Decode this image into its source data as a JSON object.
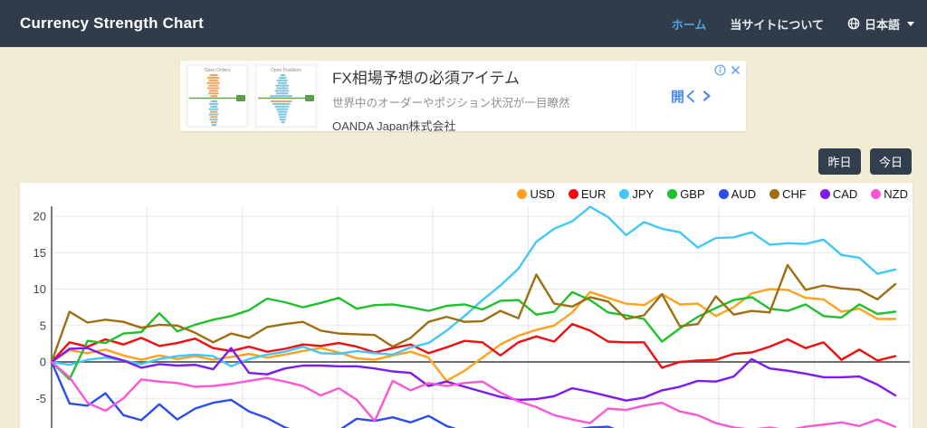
{
  "page": {
    "background": "#f3ecd5",
    "card_background": "#ffffff"
  },
  "header": {
    "title": "Currency Strength Chart",
    "background": "#303c4a",
    "active_link_color": "#4aa5e2",
    "nav": [
      {
        "label": "ホーム",
        "active": true
      },
      {
        "label": "当サイトについて",
        "active": false
      },
      {
        "label": "日本語",
        "active": false
      }
    ]
  },
  "ad": {
    "headline": "FX相場予想の必須アイテム",
    "description": "世界中のオーダーやポジション状況が一目瞭然",
    "advertiser": "OANDA Japan株式会社",
    "cta_label": "開く",
    "cta_color": "#4a8df0",
    "thumb_panels": [
      {
        "title": "Open Orders",
        "above": [
          [
            0.35,
            "o"
          ],
          [
            0.5,
            "o"
          ],
          [
            0.42,
            "o"
          ],
          [
            0.55,
            "o"
          ],
          [
            0.4,
            "o"
          ],
          [
            0.52,
            "o"
          ],
          [
            0.38,
            "o"
          ],
          [
            0.45,
            "o"
          ],
          [
            0.3,
            "o"
          ]
        ],
        "below": [
          [
            0.28,
            "b"
          ],
          [
            0.38,
            "b"
          ],
          [
            0.3,
            "b"
          ],
          [
            0.42,
            "b"
          ],
          [
            0.32,
            "o"
          ],
          [
            0.4,
            "b"
          ],
          [
            0.3,
            "o"
          ],
          [
            0.36,
            "b"
          ],
          [
            0.26,
            "o"
          ],
          [
            0.2,
            "b"
          ]
        ]
      },
      {
        "title": "Open Positions",
        "above": [
          [
            0.2,
            "b"
          ],
          [
            0.32,
            "b"
          ],
          [
            0.45,
            "b"
          ],
          [
            0.38,
            "b"
          ],
          [
            0.55,
            "b"
          ],
          [
            0.48,
            "b"
          ],
          [
            0.6,
            "b"
          ],
          [
            0.52,
            "b"
          ],
          [
            0.95,
            "b"
          ]
        ],
        "below": [
          [
            0.9,
            "o"
          ],
          [
            0.75,
            "b"
          ],
          [
            0.6,
            "b"
          ],
          [
            0.5,
            "b"
          ],
          [
            0.42,
            "b"
          ],
          [
            0.36,
            "b"
          ],
          [
            0.3,
            "b"
          ],
          [
            0.26,
            "b"
          ],
          [
            0.15,
            "b"
          ]
        ]
      }
    ]
  },
  "controls": {
    "yesterday_label": "昨日",
    "today_label": "今日"
  },
  "chart_data": {
    "type": "line",
    "title": "",
    "x_labels_visible": false,
    "x_point_count": 48,
    "yticks": [
      20,
      15,
      10,
      5,
      0,
      -5
    ],
    "visible_ylim": [
      -9,
      22
    ],
    "grid": true,
    "legend_position": "top-right",
    "grid_color": "#e7e7e7",
    "zero_line_color": "#565656",
    "axis_color": "#7a7a7a",
    "tick_label_color": "#444444",
    "series": [
      {
        "name": "USD",
        "color": "#ffa11d",
        "values": [
          0,
          1.6,
          1.2,
          1.7,
          0.9,
          0.3,
          0.9,
          0.4,
          0.8,
          0.3,
          0.7,
          1.1,
          0.6,
          1.0,
          1.5,
          1.9,
          1.3,
          0.5,
          0.3,
          0.9,
          1.4,
          0.6,
          -2.6,
          -1.2,
          0.6,
          2.4,
          3.6,
          4.4,
          5.0,
          6.8,
          9.6,
          8.8,
          8.0,
          7.8,
          9.3,
          7.9,
          8.0,
          6.3,
          7.5,
          9.4,
          10.0,
          9.9,
          8.8,
          8.6,
          6.9,
          7.3,
          5.9,
          5.9
        ]
      },
      {
        "name": "EUR",
        "color": "#f20d10",
        "values": [
          0,
          2.7,
          2.1,
          3.1,
          2.4,
          3.3,
          2.2,
          2.6,
          3.2,
          1.9,
          1.5,
          2.1,
          1.4,
          1.8,
          2.4,
          2.2,
          2.6,
          2.1,
          1.3,
          1.9,
          2.4,
          1.2,
          2.0,
          2.9,
          2.7,
          0.9,
          2.7,
          3.5,
          2.8,
          5.2,
          4.3,
          2.8,
          2.7,
          2.7,
          -0.8,
          0.0,
          0.2,
          0.3,
          1.1,
          1.3,
          2.1,
          3.1,
          1.9,
          2.7,
          0.3,
          1.7,
          0.2,
          0.8
        ]
      },
      {
        "name": "JPY",
        "color": "#41c7fb",
        "values": [
          0,
          -0.4,
          0.3,
          0.6,
          0.2,
          -0.3,
          0.4,
          0.8,
          1.0,
          0.8,
          -0.6,
          0.4,
          1.0,
          1.4,
          2.1,
          1.2,
          1.1,
          1.5,
          1.2,
          1.0,
          2.0,
          2.6,
          4.3,
          6.3,
          8.5,
          10.5,
          12.8,
          16.5,
          18.3,
          19.3,
          21.3,
          19.9,
          17.4,
          19.2,
          18.3,
          17.8,
          15.7,
          17.0,
          17.1,
          17.8,
          16.1,
          16.3,
          16.2,
          16.8,
          14.7,
          14.3,
          12.1,
          12.7
        ]
      },
      {
        "name": "GBP",
        "color": "#20c12c",
        "values": [
          0,
          -2.4,
          2.9,
          2.6,
          3.9,
          4.1,
          6.7,
          4.2,
          5.1,
          5.8,
          6.3,
          7.1,
          8.7,
          8.2,
          7.5,
          8.1,
          8.8,
          7.3,
          7.8,
          7.9,
          7.5,
          7.0,
          7.7,
          7.9,
          7.2,
          8.4,
          8.5,
          6.5,
          6.9,
          9.6,
          8.5,
          6.8,
          6.4,
          5.9,
          2.8,
          4.6,
          6.2,
          7.4,
          8.5,
          8.9,
          7.3,
          7.0,
          7.9,
          6.3,
          6.1,
          7.9,
          6.6,
          6.9
        ]
      },
      {
        "name": "AUD",
        "color": "#2a4df0",
        "values": [
          0,
          -5.7,
          -6.0,
          -4.3,
          -7.3,
          -8.0,
          -5.8,
          -7.9,
          -6.4,
          -5.6,
          -5.2,
          -6.8,
          -7.7,
          -9.0,
          -9.8,
          -10.3,
          -9.4,
          -7.8,
          -8.1,
          -7.6,
          -8.3,
          -7.4,
          -8.8,
          -9.6,
          -10.2,
          -10.8,
          -11.2,
          -10.8,
          -10.0,
          -9.4,
          -9.0,
          -8.9,
          -9.8,
          -10.6,
          -11.2,
          -11.4,
          -11.0,
          -10.7,
          -11.0,
          -11.3,
          -11.1,
          -10.8,
          -11.2,
          -11.5,
          -11.1,
          -11.4,
          -11.7,
          -11.4
        ]
      },
      {
        "name": "CHF",
        "color": "#9d6f12",
        "values": [
          0,
          6.9,
          5.4,
          5.8,
          5.5,
          4.7,
          5.1,
          5.0,
          4.0,
          2.7,
          3.9,
          3.3,
          4.8,
          5.2,
          5.5,
          4.3,
          3.9,
          3.8,
          3.7,
          2.1,
          3.3,
          5.5,
          6.2,
          5.5,
          5.6,
          7.0,
          6.0,
          12.0,
          8.0,
          7.6,
          8.9,
          8.3,
          5.9,
          6.4,
          9.3,
          4.9,
          5.2,
          9.0,
          6.5,
          7.0,
          6.8,
          13.3,
          9.9,
          10.5,
          10.1,
          9.9,
          8.6,
          10.7
        ]
      },
      {
        "name": "CAD",
        "color": "#7d19f2",
        "values": [
          0,
          1.8,
          1.9,
          0.9,
          0.2,
          -0.8,
          -0.3,
          -0.5,
          -0.4,
          -1.0,
          1.9,
          -1.5,
          -1.7,
          -0.9,
          -0.5,
          -0.5,
          -0.6,
          -0.6,
          -0.9,
          -1.3,
          -1.5,
          -3.3,
          -2.7,
          -3.4,
          -4.1,
          -4.8,
          -5.2,
          -5.1,
          -4.7,
          -3.6,
          -4.1,
          -4.7,
          -5.3,
          -4.9,
          -3.9,
          -3.4,
          -2.6,
          -2.7,
          -2.0,
          0.4,
          -0.9,
          -1.2,
          -1.6,
          -2.1,
          -2.1,
          -2.0,
          -3.1,
          -4.6
        ]
      },
      {
        "name": "NZD",
        "color": "#fb57d5",
        "values": [
          0,
          -2.1,
          -5.6,
          -6.7,
          -5.0,
          -2.4,
          -2.7,
          -2.9,
          -3.4,
          -3.3,
          -3.0,
          -2.6,
          -2.2,
          -2.7,
          -3.3,
          -4.6,
          -3.6,
          -5.2,
          -8.1,
          -2.6,
          -3.9,
          -2.9,
          -3.3,
          -2.9,
          -2.7,
          -4.2,
          -5.4,
          -6.2,
          -7.3,
          -7.9,
          -8.4,
          -6.4,
          -6.6,
          -6.0,
          -5.6,
          -6.8,
          -7.3,
          -8.4,
          -9.0,
          -9.3,
          -9.0,
          -9.4,
          -8.9,
          -8.6,
          -8.3,
          -8.8,
          -7.9,
          -8.9
        ]
      }
    ]
  }
}
